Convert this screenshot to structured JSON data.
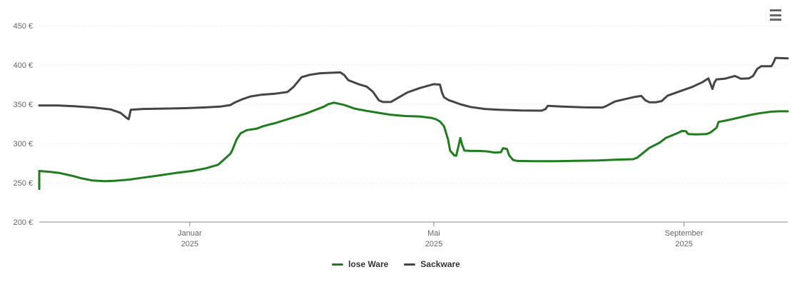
{
  "chart": {
    "menu_icon": "hamburger-menu",
    "colors": {
      "background": "#ffffff",
      "grid": "#dcdcdc",
      "axis": "#8a8a8a",
      "axis_labels": "#666666",
      "legend_text": "#333333"
    }
  },
  "chart_data": {
    "type": "line",
    "title": "",
    "y_unit_suffix": " €",
    "ylim": [
      200,
      450
    ],
    "y_ticks": [
      200,
      250,
      300,
      350,
      400,
      450
    ],
    "xlim": [
      "2024-10-19",
      "2025-10-22"
    ],
    "x_ticks": [
      {
        "label": "Januar",
        "year": "2025",
        "date": "2025-01-01"
      },
      {
        "label": "Mai",
        "year": "2025",
        "date": "2025-05-01"
      },
      {
        "label": "September",
        "year": "2025",
        "date": "2025-09-01"
      }
    ],
    "grid": "dotted",
    "legend_position": "bottom-center",
    "legend": [
      "lose Ware",
      "Sackware"
    ],
    "series": [
      {
        "name": "lose Ware",
        "color": "#1e7e1e",
        "points": [
          [
            "2024-10-19",
            242
          ],
          [
            "2024-10-19",
            265
          ],
          [
            "2024-10-24",
            264
          ],
          [
            "2024-10-29",
            262.5
          ],
          [
            "2024-11-04",
            259
          ],
          [
            "2024-11-09",
            255.5
          ],
          [
            "2024-11-14",
            253
          ],
          [
            "2024-11-20",
            252
          ],
          [
            "2024-11-25",
            252.5
          ],
          [
            "2024-12-02",
            254
          ],
          [
            "2024-12-09",
            256.5
          ],
          [
            "2024-12-16",
            259
          ],
          [
            "2024-12-25",
            262.5
          ],
          [
            "2025-01-02",
            265
          ],
          [
            "2025-01-09",
            268.5
          ],
          [
            "2025-01-15",
            273
          ],
          [
            "2025-01-18",
            280
          ],
          [
            "2025-01-21",
            287
          ],
          [
            "2025-01-22",
            292
          ],
          [
            "2025-01-24",
            305
          ],
          [
            "2025-01-26",
            313
          ],
          [
            "2025-01-29",
            317
          ],
          [
            "2025-02-03",
            319
          ],
          [
            "2025-02-06",
            322
          ],
          [
            "2025-02-12",
            326
          ],
          [
            "2025-02-17",
            330
          ],
          [
            "2025-02-22",
            334
          ],
          [
            "2025-02-27",
            338
          ],
          [
            "2025-03-04",
            343
          ],
          [
            "2025-03-08",
            347
          ],
          [
            "2025-03-10",
            350
          ],
          [
            "2025-03-13",
            352
          ],
          [
            "2025-03-18",
            349
          ],
          [
            "2025-03-23",
            344.5
          ],
          [
            "2025-03-29",
            341.5
          ],
          [
            "2025-04-04",
            339
          ],
          [
            "2025-04-10",
            336.5
          ],
          [
            "2025-04-17",
            335
          ],
          [
            "2025-04-24",
            334.5
          ],
          [
            "2025-04-30",
            332.5
          ],
          [
            "2025-05-02",
            331
          ],
          [
            "2025-05-04",
            328
          ],
          [
            "2025-05-06",
            322
          ],
          [
            "2025-05-08",
            305
          ],
          [
            "2025-05-09",
            291
          ],
          [
            "2025-05-11",
            285
          ],
          [
            "2025-05-12",
            284.5
          ],
          [
            "2025-05-13",
            295
          ],
          [
            "2025-05-14",
            307
          ],
          [
            "2025-05-15",
            298
          ],
          [
            "2025-05-16",
            291
          ],
          [
            "2025-05-19",
            290.5
          ],
          [
            "2025-05-23",
            290.5
          ],
          [
            "2025-05-27",
            290
          ],
          [
            "2025-05-31",
            288.5
          ],
          [
            "2025-06-03",
            289
          ],
          [
            "2025-06-04",
            294
          ],
          [
            "2025-06-06",
            293
          ],
          [
            "2025-06-07",
            285
          ],
          [
            "2025-06-09",
            279
          ],
          [
            "2025-06-11",
            277.8
          ],
          [
            "2025-06-19",
            277.5
          ],
          [
            "2025-06-30",
            277.5
          ],
          [
            "2025-07-10",
            278
          ],
          [
            "2025-07-21",
            278.5
          ],
          [
            "2025-07-30",
            279.5
          ],
          [
            "2025-08-07",
            280
          ],
          [
            "2025-08-09",
            282
          ],
          [
            "2025-08-15",
            294.5
          ],
          [
            "2025-08-20",
            301
          ],
          [
            "2025-08-23",
            307
          ],
          [
            "2025-08-29",
            313.5
          ],
          [
            "2025-08-31",
            316
          ],
          [
            "2025-09-02",
            315.5
          ],
          [
            "2025-09-03",
            312
          ],
          [
            "2025-09-07",
            311.5
          ],
          [
            "2025-09-12",
            312
          ],
          [
            "2025-09-14",
            314
          ],
          [
            "2025-09-17",
            320
          ],
          [
            "2025-09-18",
            327.5
          ],
          [
            "2025-09-20",
            328.5
          ],
          [
            "2025-09-23",
            330
          ],
          [
            "2025-09-28",
            333
          ],
          [
            "2025-10-03",
            336
          ],
          [
            "2025-10-08",
            338.5
          ],
          [
            "2025-10-14",
            340.5
          ],
          [
            "2025-10-18",
            341
          ],
          [
            "2025-10-22",
            341
          ]
        ]
      },
      {
        "name": "Sackware",
        "color": "#454545",
        "points": [
          [
            "2024-10-19",
            348.5
          ],
          [
            "2024-10-28",
            348.5
          ],
          [
            "2024-11-05",
            347.5
          ],
          [
            "2024-11-14",
            346
          ],
          [
            "2024-11-23",
            343.5
          ],
          [
            "2024-11-28",
            339
          ],
          [
            "2024-12-01",
            332.5
          ],
          [
            "2024-12-02",
            331
          ],
          [
            "2024-12-03",
            343
          ],
          [
            "2024-12-09",
            344
          ],
          [
            "2024-12-19",
            344.5
          ],
          [
            "2024-12-30",
            345
          ],
          [
            "2025-01-09",
            346
          ],
          [
            "2025-01-16",
            347
          ],
          [
            "2025-01-21",
            349
          ],
          [
            "2025-01-23",
            352
          ],
          [
            "2025-01-27",
            356.5
          ],
          [
            "2025-01-31",
            360
          ],
          [
            "2025-02-05",
            362
          ],
          [
            "2025-02-12",
            363.5
          ],
          [
            "2025-02-18",
            365.5
          ],
          [
            "2025-02-21",
            372
          ],
          [
            "2025-02-25",
            384.5
          ],
          [
            "2025-03-01",
            387.5
          ],
          [
            "2025-03-06",
            389.5
          ],
          [
            "2025-03-11",
            390
          ],
          [
            "2025-03-16",
            390.5
          ],
          [
            "2025-03-18",
            387
          ],
          [
            "2025-03-20",
            380.5
          ],
          [
            "2025-03-25",
            375.5
          ],
          [
            "2025-03-29",
            372.5
          ],
          [
            "2025-04-01",
            366
          ],
          [
            "2025-04-04",
            355
          ],
          [
            "2025-04-06",
            352.8
          ],
          [
            "2025-04-10",
            353
          ],
          [
            "2025-04-14",
            359
          ],
          [
            "2025-04-18",
            365
          ],
          [
            "2025-04-24",
            370.5
          ],
          [
            "2025-04-28",
            373.5
          ],
          [
            "2025-05-01",
            375.5
          ],
          [
            "2025-05-04",
            375
          ],
          [
            "2025-05-05",
            365
          ],
          [
            "2025-05-06",
            359
          ],
          [
            "2025-05-08",
            355.5
          ],
          [
            "2025-05-14",
            350
          ],
          [
            "2025-05-19",
            346.5
          ],
          [
            "2025-05-26",
            344
          ],
          [
            "2025-06-02",
            343
          ],
          [
            "2025-06-13",
            342
          ],
          [
            "2025-06-23",
            341.8
          ],
          [
            "2025-06-25",
            344
          ],
          [
            "2025-06-26",
            348
          ],
          [
            "2025-07-03",
            347
          ],
          [
            "2025-07-14",
            346
          ],
          [
            "2025-07-23",
            345.8
          ],
          [
            "2025-07-25",
            348
          ],
          [
            "2025-07-29",
            353.5
          ],
          [
            "2025-08-03",
            356.5
          ],
          [
            "2025-08-08",
            359.5
          ],
          [
            "2025-08-11",
            360.5
          ],
          [
            "2025-08-13",
            355
          ],
          [
            "2025-08-15",
            352.5
          ],
          [
            "2025-08-18",
            352.5
          ],
          [
            "2025-08-21",
            354
          ],
          [
            "2025-08-24",
            361
          ],
          [
            "2025-08-30",
            366.5
          ],
          [
            "2025-09-05",
            372
          ],
          [
            "2025-09-10",
            378
          ],
          [
            "2025-09-13",
            383
          ],
          [
            "2025-09-14",
            376
          ],
          [
            "2025-09-15",
            369.5
          ],
          [
            "2025-09-16",
            378
          ],
          [
            "2025-09-17",
            381.5
          ],
          [
            "2025-09-21",
            382.5
          ],
          [
            "2025-09-26",
            386
          ],
          [
            "2025-09-29",
            382.5
          ],
          [
            "2025-10-03",
            383
          ],
          [
            "2025-10-05",
            386
          ],
          [
            "2025-10-07",
            395
          ],
          [
            "2025-10-09",
            398.5
          ],
          [
            "2025-10-14",
            398.5
          ],
          [
            "2025-10-15",
            403
          ],
          [
            "2025-10-16",
            409
          ],
          [
            "2025-10-22",
            408.5
          ]
        ]
      }
    ]
  }
}
